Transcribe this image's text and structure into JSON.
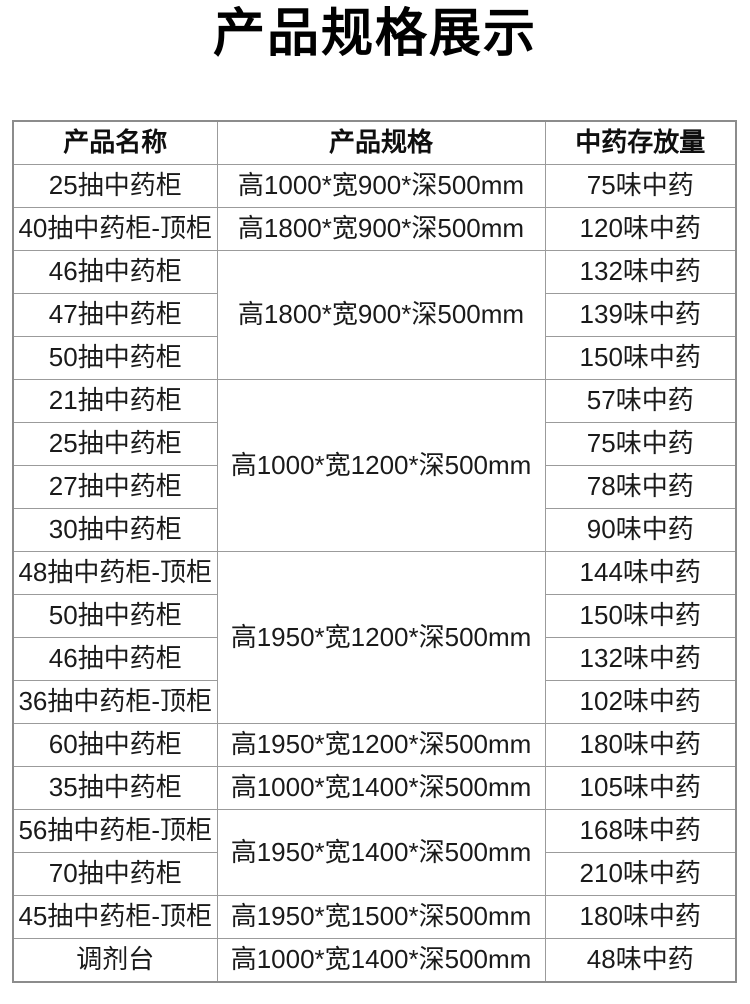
{
  "page": {
    "title": "产品规格展示",
    "background": "#ffffff",
    "title_color": "#000000"
  },
  "table": {
    "border_color": "#9b9b9b",
    "text_color": "#1a1a1a",
    "headers": {
      "product_name": "产品名称",
      "product_spec": "产品规格",
      "storage_capacity": "中药存放量"
    },
    "rows": [
      {
        "name": "25抽中药柜",
        "spec": "高1000*宽900*深500mm",
        "spec_rowspan": 1,
        "storage": "75味中药"
      },
      {
        "name": "40抽中药柜-顶柜",
        "spec": "高1800*宽900*深500mm",
        "spec_rowspan": 1,
        "storage": "120味中药"
      },
      {
        "name": "46抽中药柜",
        "spec": "高1800*宽900*深500mm",
        "spec_rowspan": 3,
        "storage": "132味中药"
      },
      {
        "name": "47抽中药柜",
        "storage": "139味中药"
      },
      {
        "name": "50抽中药柜",
        "storage": "150味中药"
      },
      {
        "name": "21抽中药柜",
        "spec": "高1000*宽1200*深500mm",
        "spec_rowspan": 4,
        "storage": "57味中药"
      },
      {
        "name": "25抽中药柜",
        "storage": "75味中药"
      },
      {
        "name": "27抽中药柜",
        "storage": "78味中药"
      },
      {
        "name": "30抽中药柜",
        "storage": "90味中药"
      },
      {
        "name": "48抽中药柜-顶柜",
        "spec": "高1950*宽1200*深500mm",
        "spec_rowspan": 4,
        "storage": "144味中药"
      },
      {
        "name": "50抽中药柜",
        "storage": "150味中药"
      },
      {
        "name": "46抽中药柜",
        "storage": "132味中药"
      },
      {
        "name": "36抽中药柜-顶柜",
        "storage": "102味中药"
      },
      {
        "name": "60抽中药柜",
        "spec": "高1950*宽1200*深500mm",
        "spec_rowspan": 1,
        "storage": "180味中药"
      },
      {
        "name": "35抽中药柜",
        "spec": "高1000*宽1400*深500mm",
        "spec_rowspan": 1,
        "storage": "105味中药"
      },
      {
        "name": "56抽中药柜-顶柜",
        "spec": "高1950*宽1400*深500mm",
        "spec_rowspan": 2,
        "storage": "168味中药"
      },
      {
        "name": "70抽中药柜",
        "storage": "210味中药"
      },
      {
        "name": "45抽中药柜-顶柜",
        "spec": "高1950*宽1500*深500mm",
        "spec_rowspan": 1,
        "storage": "180味中药"
      },
      {
        "name": "调剂台",
        "spec": "高1000*宽1400*深500mm",
        "spec_rowspan": 1,
        "storage": "48味中药"
      }
    ]
  }
}
